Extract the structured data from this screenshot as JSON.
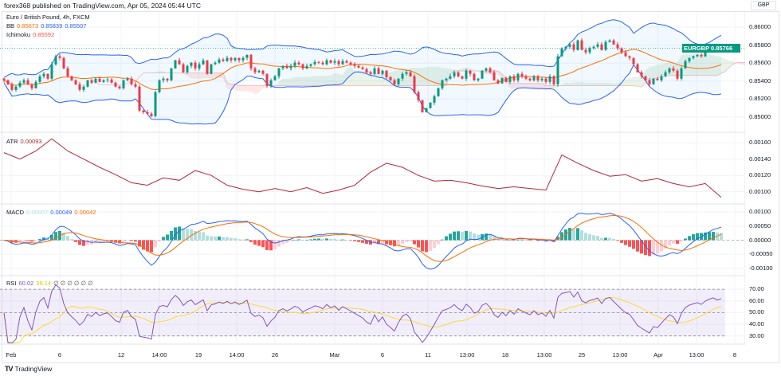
{
  "header": {
    "published": "forex368 published on TradingView.com, Apr 05, 2024 05:44 UTC"
  },
  "legend": {
    "symbol": "Euro / British Pound, 4h, FXCM",
    "bb_label": "BB",
    "bb_basis": "0.85673",
    "bb_upper": "0.85839",
    "bb_lower": "0.85507",
    "ichimoku_label": "Ichimoku",
    "ichimoku_value": "0.85592",
    "atr_label": "ATR",
    "atr_value": "0.00093",
    "macd_label": "MACD",
    "macd_hist": "0.00007",
    "macd_line": "0.00049",
    "macd_signal": "0.00042",
    "rsi_label": "RSI",
    "rsi_value": "60.02",
    "rsi_ma": "58.14",
    "rsi_extra": "∅ ∅ ∅ ∅ ∅  ∅"
  },
  "currency": "GBP",
  "price_tag": {
    "symbol": "EURGBP",
    "value": "0.85766"
  },
  "logo": {
    "icon": "tradingview-logo",
    "text": "TradingView"
  },
  "colors": {
    "up": "#089981",
    "down": "#f23645",
    "bb_band": "#2962ff",
    "bb_basis": "#ff6d00",
    "atr": "#b22833",
    "macd": "#2962ff",
    "signal": "#ff6d00",
    "rsi": "#7e57c2",
    "rsi_ma": "#fdd835",
    "cloud_up": "#a5d6a7",
    "cloud_down": "#ef9a9a"
  },
  "x_ticks": [
    "Feb",
    "6",
    "12",
    "14:00",
    "19",
    "14:00",
    "26",
    "Mar",
    "6",
    "11",
    "13:00",
    "18",
    "13:00",
    "25",
    "13:00",
    "Apr",
    "13:00",
    "8"
  ],
  "chart_data": [
    {
      "type": "candlestick",
      "name": "EURGBP",
      "ylim": [
        0.8483,
        0.8617
      ],
      "yticks": [
        "0.86000",
        "0.85800",
        "0.85600",
        "0.85400",
        "0.85200",
        "0.85000"
      ],
      "closes": [
        0.85409,
        0.85364,
        0.85302,
        0.85338,
        0.85382,
        0.85409,
        0.85364,
        0.8532,
        0.85391,
        0.85453,
        0.8548,
        0.85427,
        0.85587,
        0.85676,
        0.85658,
        0.85542,
        0.85453,
        0.85409,
        0.85364,
        0.85302,
        0.85338,
        0.85409,
        0.85382,
        0.85427,
        0.85391,
        0.85409,
        0.85418,
        0.85382,
        0.85338,
        0.8532,
        0.85409,
        0.85427,
        0.85364,
        0.85338,
        0.85071,
        0.85053,
        0.85036,
        0.85009,
        0.85276,
        0.85409,
        0.85427,
        0.85409,
        0.85542,
        0.85631,
        0.85587,
        0.85498,
        0.85569,
        0.85605,
        0.85542,
        0.85587,
        0.85631,
        0.8548,
        0.85587,
        0.85605,
        0.8564,
        0.85622,
        0.85658,
        0.85631,
        0.85658,
        0.85631,
        0.85658,
        0.85693,
        0.85542,
        0.85498,
        0.85516,
        0.8548,
        0.85347,
        0.85409,
        0.85453,
        0.85542,
        0.85569,
        0.85542,
        0.85569,
        0.85605,
        0.85587,
        0.85542,
        0.85569,
        0.85587,
        0.85613,
        0.85605,
        0.85587,
        0.85631,
        0.85605,
        0.85622,
        0.85587,
        0.85622,
        0.85605,
        0.85587,
        0.85569,
        0.85551,
        0.85533,
        0.85498,
        0.8548,
        0.85542,
        0.8548,
        0.85516,
        0.85444,
        0.85409,
        0.85364,
        0.85427,
        0.8548,
        0.85498,
        0.85453,
        0.85276,
        0.85187,
        0.85053,
        0.85098,
        0.8516,
        0.85231,
        0.8532,
        0.85409,
        0.85427,
        0.85453,
        0.85498,
        0.85453,
        0.85427,
        0.85516,
        0.8548,
        0.85409,
        0.85427,
        0.85516,
        0.85542,
        0.85498,
        0.85409,
        0.85373,
        0.85436,
        0.85391,
        0.85453,
        0.85409,
        0.8548,
        0.85453,
        0.85427,
        0.85409,
        0.85453,
        0.85409,
        0.85427,
        0.85391,
        0.85453,
        0.85364,
        0.85676,
        0.85765,
        0.85782,
        0.85809,
        0.85747,
        0.85853,
        0.85747,
        0.8572,
        0.85765,
        0.85782,
        0.85809,
        0.85747,
        0.85836,
        0.85853,
        0.85809,
        0.85765,
        0.8572,
        0.85676,
        0.85658,
        0.85587,
        0.85498,
        0.85453,
        0.85409,
        0.85364,
        0.85427,
        0.85409,
        0.85453,
        0.85498,
        0.85542,
        0.85516,
        0.85427,
        0.85542,
        0.85622,
        0.85658,
        0.85676,
        0.85693,
        0.85676,
        0.8572,
        0.85747,
        0.85765,
        0.85747,
        0.85766
      ]
    },
    {
      "type": "line",
      "name": "ATR",
      "ylim": [
        0.00085,
        0.00172
      ],
      "yticks": [
        "0.00160",
        "0.00140",
        "0.00120",
        "0.00100"
      ],
      "values": [
        0.00148,
        0.0014,
        0.0015,
        0.00165,
        0.0015,
        0.0014,
        0.0013,
        0.00121,
        0.00111,
        0.00108,
        0.00117,
        0.00114,
        0.00126,
        0.0012,
        0.00108,
        0.00103,
        0.001,
        0.00104,
        0.001,
        0.00105,
        0.00098,
        0.00102,
        0.00108,
        0.00124,
        0.00135,
        0.0013,
        0.0012,
        0.00113,
        0.00114,
        0.00111,
        0.00107,
        0.00104,
        0.00106,
        0.00104,
        0.00102,
        0.00145,
        0.00135,
        0.00126,
        0.00119,
        0.00121,
        0.00113,
        0.00116,
        0.0011,
        0.00106,
        0.0011,
        0.00093
      ]
    },
    {
      "type": "bar+line",
      "name": "MACD",
      "ylim": [
        -0.00126,
        0.00126
      ],
      "yticks": [
        "0.00100",
        "0.00050",
        "0.00000",
        "-0.00050",
        "-0.00100"
      ]
    },
    {
      "type": "line",
      "name": "RSI",
      "ylim": [
        23,
        81
      ],
      "yticks": [
        "70.00",
        "60.00",
        "50.00",
        "40.00",
        "30.00"
      ],
      "bands": [
        70,
        50,
        30
      ]
    }
  ]
}
